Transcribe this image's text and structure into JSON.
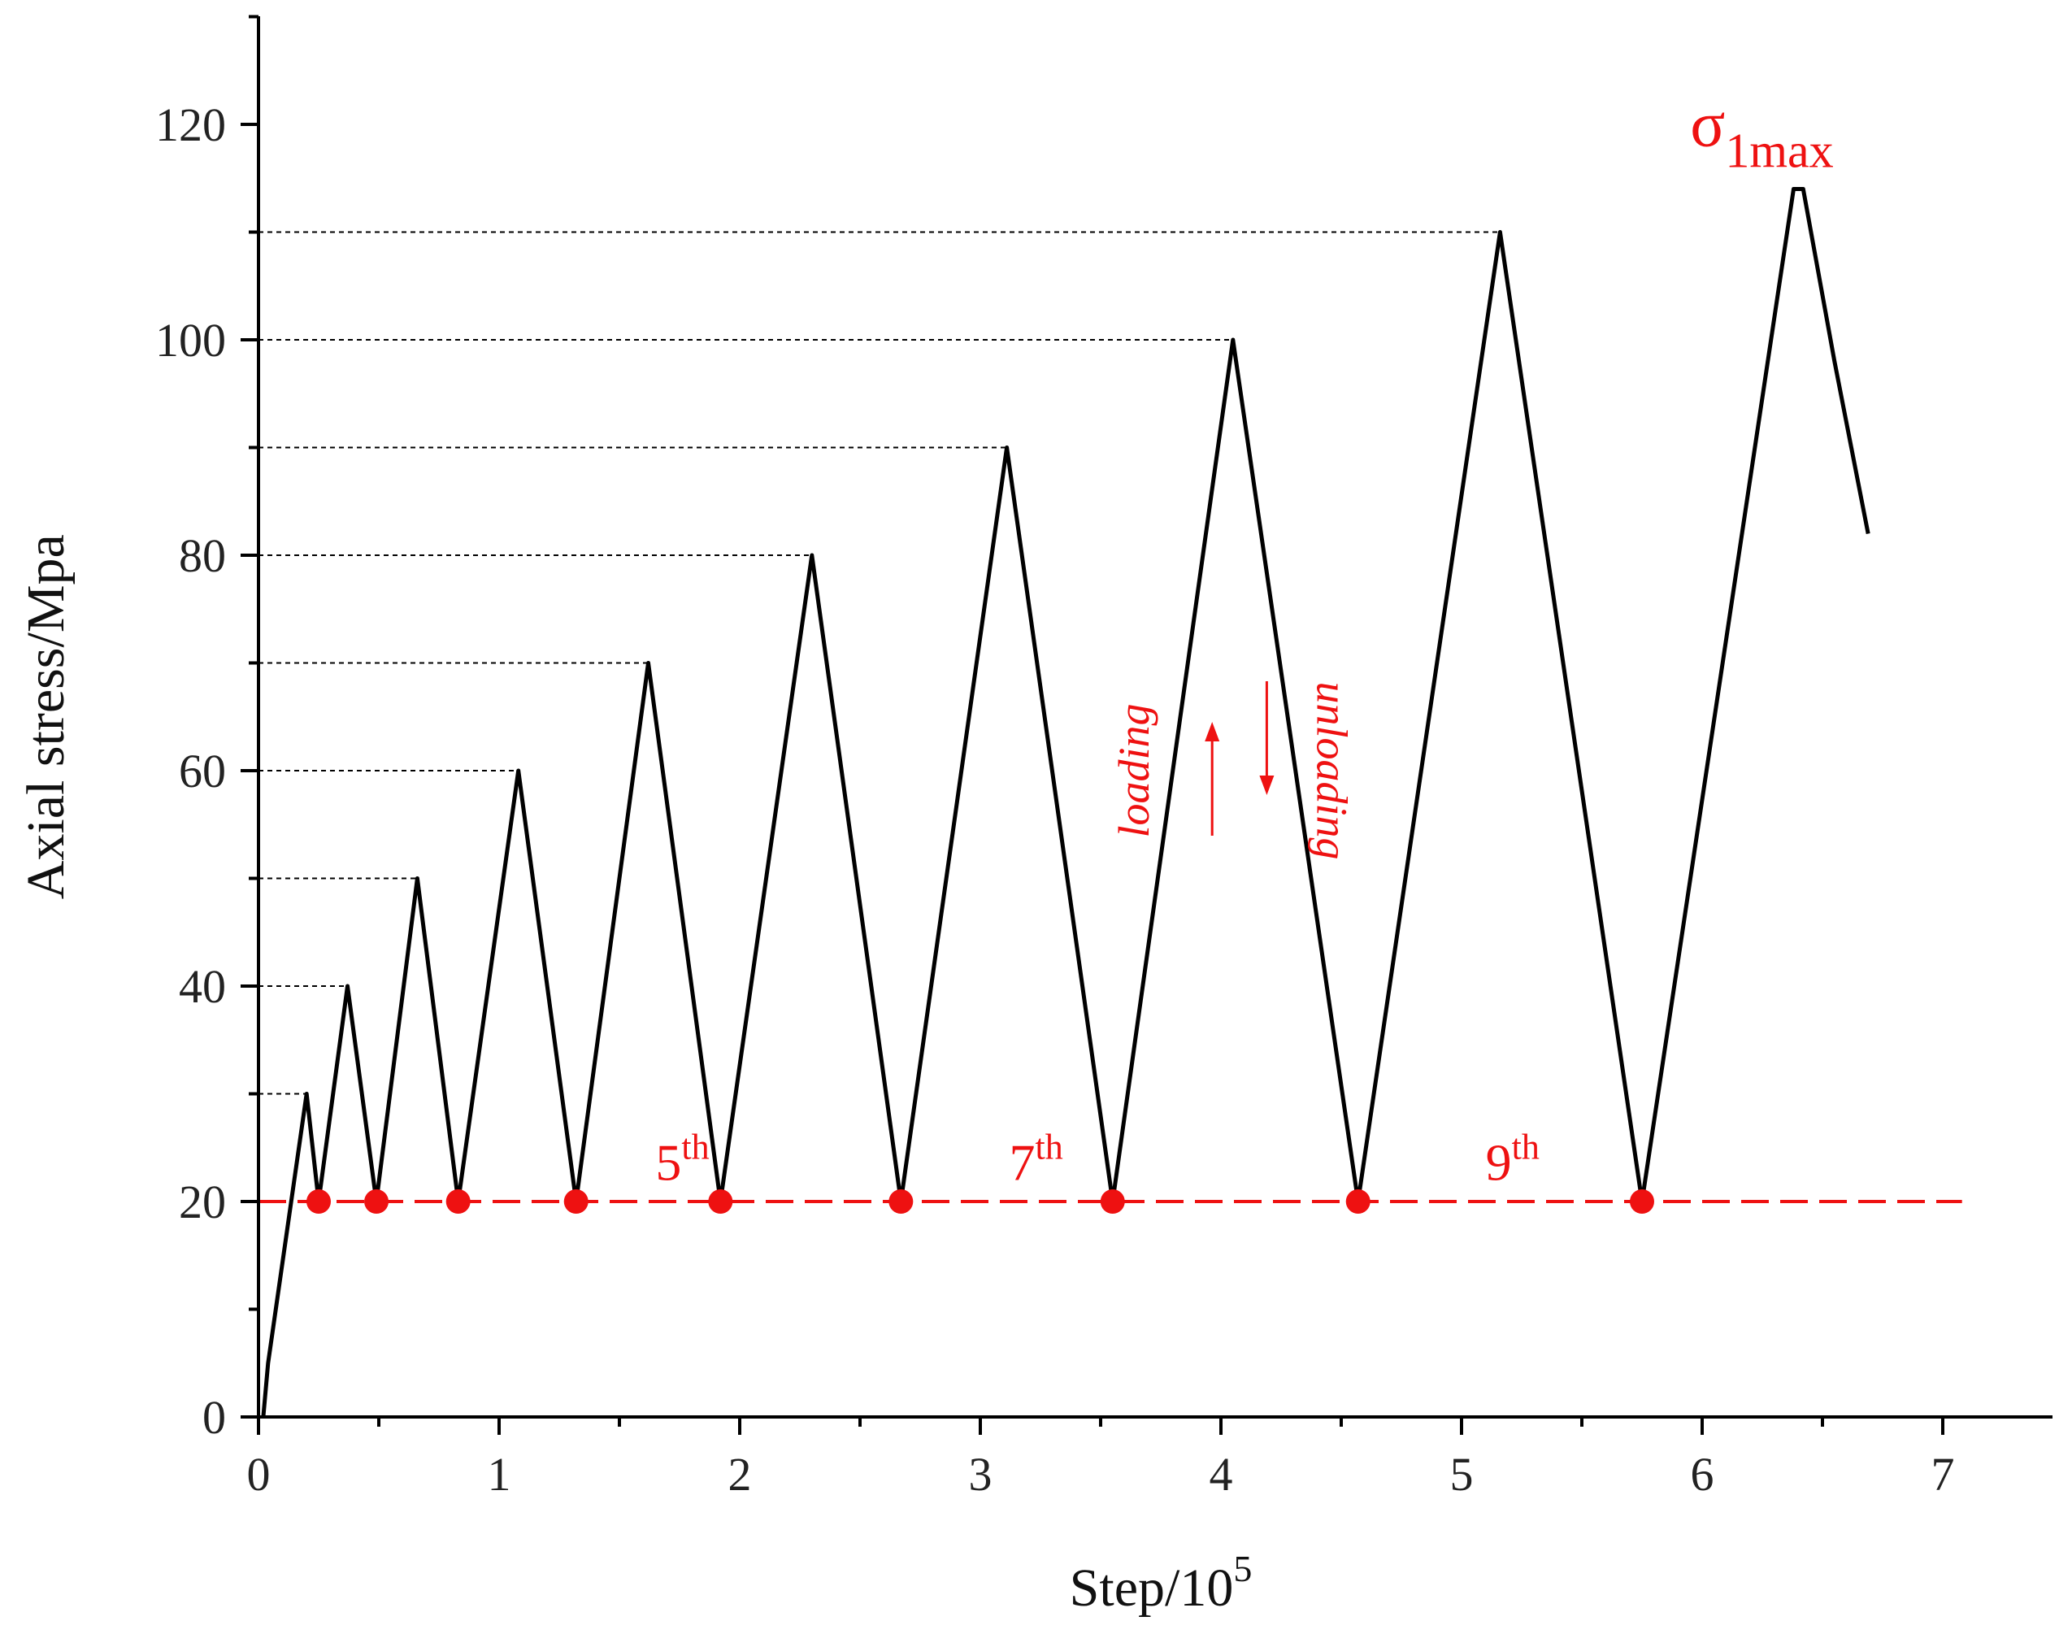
{
  "chart_data": {
    "type": "line",
    "xlabel": "Step/10",
    "xlabel_exponent": "5",
    "ylabel": "Axial stress/Mpa",
    "xlim": [
      0,
      7.5
    ],
    "ylim": [
      0,
      130
    ],
    "xticks": [
      0,
      1,
      2,
      3,
      4,
      5,
      6,
      7
    ],
    "yticks": [
      0,
      20,
      40,
      60,
      80,
      100,
      120
    ],
    "grid": false,
    "legend": "none",
    "colors": {
      "curve": "#000000",
      "annotation": "#ee1111",
      "guide": "#000000"
    },
    "series": [
      {
        "x": [
          0.02,
          0.04,
          0.2,
          0.25,
          0.37,
          0.49,
          0.66,
          0.83,
          1.08,
          1.32,
          1.62,
          1.92,
          2.3,
          2.67,
          3.11,
          3.55,
          4.05,
          4.57,
          5.16,
          5.75,
          6.38,
          6.42,
          6.55,
          6.62,
          6.69
        ],
        "y": [
          0,
          5,
          30,
          20,
          40,
          20,
          50,
          20,
          60,
          20,
          70,
          20,
          80,
          20,
          90,
          20,
          100,
          20,
          110,
          20,
          114,
          114,
          98,
          90,
          82
        ]
      }
    ],
    "peak_guides": [
      30,
      40,
      50,
      60,
      70,
      80,
      90,
      100,
      110
    ],
    "threshold": {
      "y": 20,
      "x_end": 7.08
    },
    "valley_markers": [
      {
        "x": 0.25,
        "y": 20
      },
      {
        "x": 0.49,
        "y": 20
      },
      {
        "x": 0.83,
        "y": 20
      },
      {
        "x": 1.32,
        "y": 20
      },
      {
        "x": 1.92,
        "y": 20
      },
      {
        "x": 2.67,
        "y": 20
      },
      {
        "x": 3.55,
        "y": 20
      },
      {
        "x": 4.57,
        "y": 20
      },
      {
        "x": 5.75,
        "y": 20
      }
    ],
    "annotations": {
      "cycle_labels": [
        {
          "base": "5",
          "sup": "th",
          "x": 1.65,
          "y": 22
        },
        {
          "base": "7",
          "sup": "th",
          "x": 3.12,
          "y": 22
        },
        {
          "base": "9",
          "sup": "th",
          "x": 5.1,
          "y": 22
        }
      ],
      "loading": {
        "text": "loading",
        "x": 3.7,
        "y": 60
      },
      "unloading": {
        "text": "unloading",
        "x": 4.4,
        "y": 60
      },
      "peak_label": {
        "base": "σ",
        "sub": "1max",
        "x": 5.95,
        "y": 118
      }
    }
  }
}
